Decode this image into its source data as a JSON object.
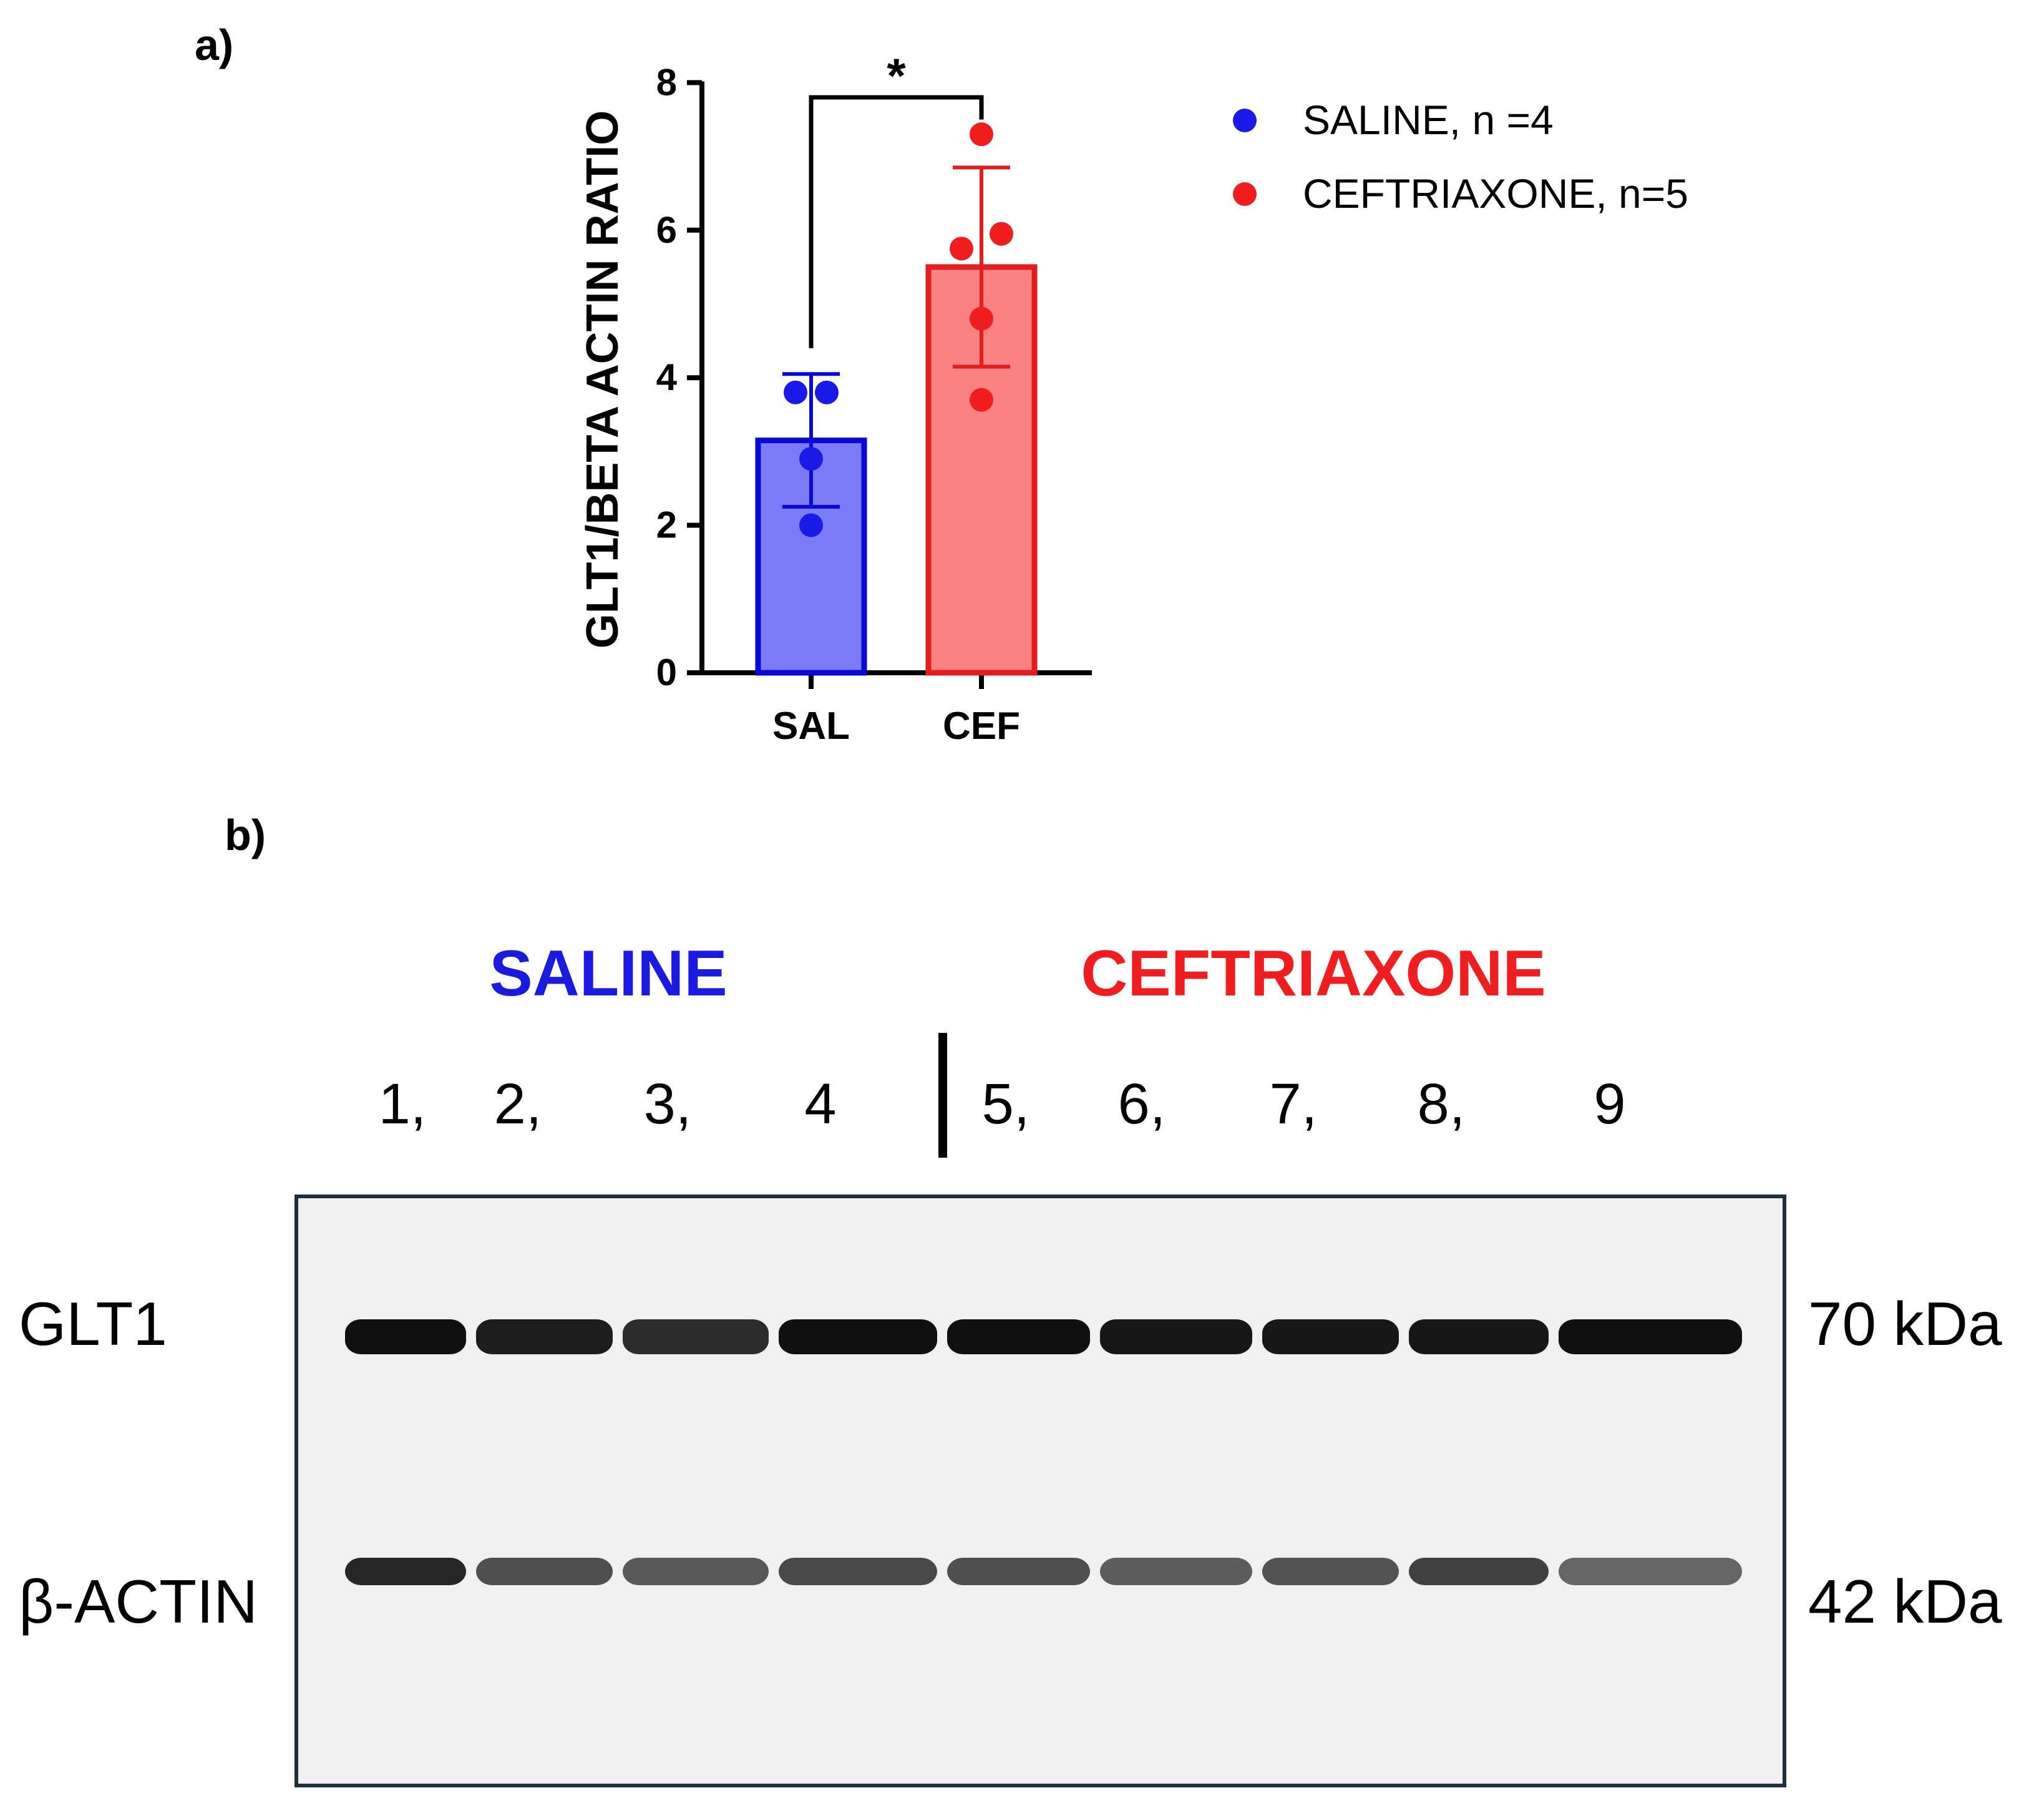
{
  "panel_a": {
    "label": "a)",
    "chart_data": {
      "type": "bar",
      "categories": [
        "SAL",
        "CEF"
      ],
      "ylabel": "GLT1/BETA ACTIN RATIO",
      "ylim": [
        0,
        8
      ],
      "yticks": [
        0,
        2,
        4,
        6,
        8
      ],
      "grid": false,
      "legend_position": "right",
      "series": [
        {
          "name": "SALINE, n =4",
          "category": "SAL",
          "mean": 3.15,
          "error": 0.9,
          "points": [
            3.8,
            3.8,
            2.9,
            2.0
          ],
          "fill_color": "#7b7bf7",
          "edge_color": "#0a0ad6",
          "point_color": "#1a1ae8"
        },
        {
          "name": "CEFTRIAXONE, n=5",
          "category": "CEF",
          "mean": 5.5,
          "error": 1.35,
          "points": [
            7.3,
            5.95,
            5.75,
            4.8,
            3.7
          ],
          "fill_color": "#f98181",
          "edge_color": "#e11d1d",
          "point_color": "#f01e1e"
        }
      ],
      "significance": "*"
    }
  },
  "panel_b": {
    "label": "b)",
    "group_saline": "SALINE",
    "group_ceftriaxone": "CEFTRIAXONE",
    "lanes": [
      "1,",
      "2,",
      "3,",
      "4",
      "5,",
      "6,",
      "7,",
      "8,",
      "9"
    ],
    "bands": [
      {
        "name": "GLT1",
        "size": "70 kDa",
        "intensity": [
          1,
          0.95,
          0.88,
          1,
          1,
          0.97,
          0.97,
          0.97,
          1
        ]
      },
      {
        "name": "β-ACTIN",
        "size": "42 kDa",
        "intensity": [
          0.9,
          0.72,
          0.68,
          0.74,
          0.72,
          0.66,
          0.7,
          0.78,
          0.62
        ]
      }
    ],
    "colors": {
      "saline": "#1a1ae0",
      "ceftriaxone": "#f01e1e",
      "border": "#1d2f3a",
      "membrane": "#f0f0f0",
      "band": "#101010"
    }
  }
}
